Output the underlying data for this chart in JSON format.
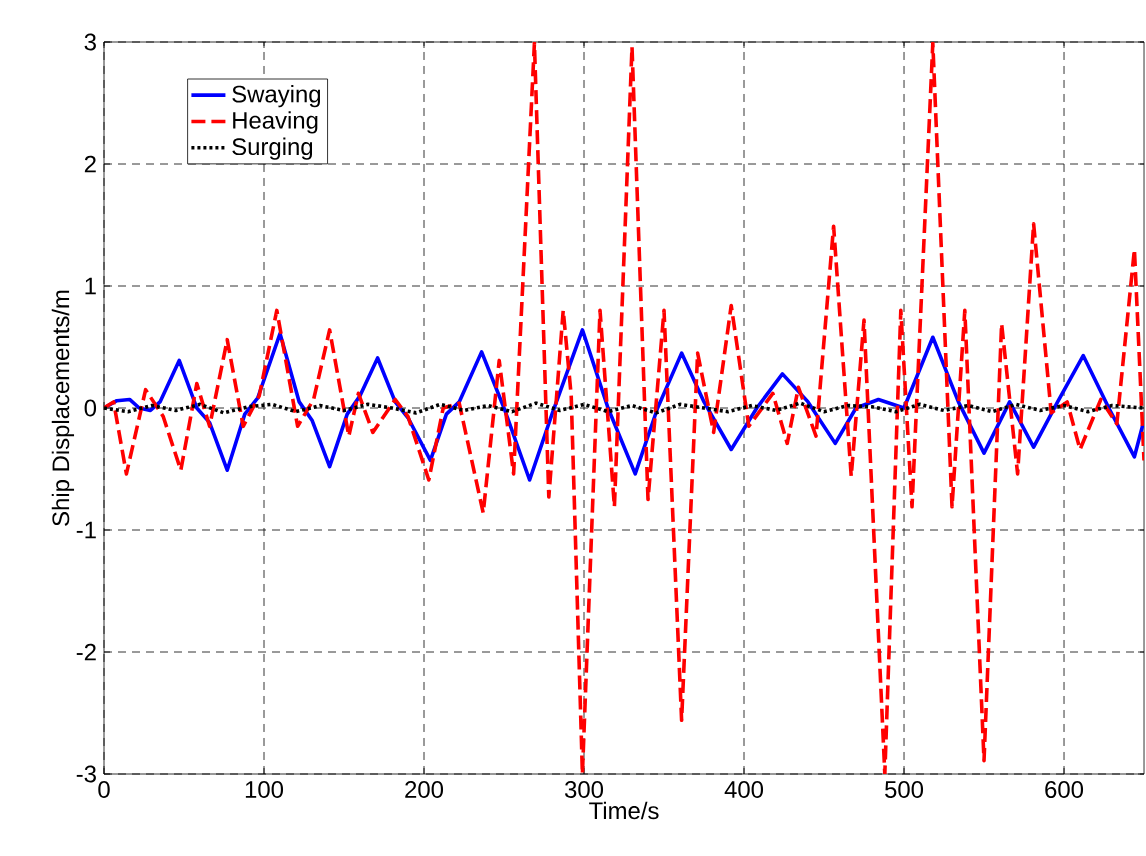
{
  "chart_data": {
    "type": "line",
    "xlabel": "Time/s",
    "ylabel": "Ship Displacements/m",
    "xlim": [
      0,
      650
    ],
    "ylim": [
      -3,
      3
    ],
    "xticks": [
      0,
      100,
      200,
      300,
      400,
      500,
      600
    ],
    "yticks": [
      -3,
      -2,
      -1,
      0,
      1,
      2,
      3
    ],
    "grid": true,
    "legend": "top left",
    "series": [
      {
        "name": "Swaying",
        "color": "#0000ff",
        "line_style": "solid",
        "x": [
          0,
          8,
          16,
          22,
          29,
          35,
          47,
          58,
          66,
          77,
          88,
          96,
          110,
          122,
          130,
          141,
          152,
          160,
          171,
          182,
          190,
          204,
          214,
          222,
          236,
          250,
          266,
          280,
          299,
          315,
          332,
          346,
          361,
          375,
          392,
          408,
          424,
          440,
          457,
          470,
          484,
          500,
          518,
          534,
          550,
          566,
          581,
          596,
          612,
          628,
          644,
          650
        ],
        "values": [
          0,
          0.06,
          0.07,
          0,
          -0.02,
          0.05,
          0.39,
          0,
          -0.12,
          -0.51,
          -0.05,
          0.08,
          0.61,
          0.05,
          -0.1,
          -0.48,
          -0.05,
          0.1,
          0.41,
          0.05,
          -0.08,
          -0.43,
          -0.05,
          0.05,
          0.46,
          0,
          -0.59,
          -0.05,
          0.64,
          0,
          -0.54,
          0,
          0.45,
          0.05,
          -0.34,
          0,
          0.28,
          0.05,
          -0.29,
          0,
          0.07,
          0,
          0.58,
          0.05,
          -0.37,
          0.05,
          -0.32,
          0.05,
          0.43,
          0,
          -0.4,
          -0.1
        ]
      },
      {
        "name": "Heaving",
        "color": "#ff0000",
        "line_style": "dashed",
        "x": [
          0,
          6,
          14,
          26,
          37,
          48,
          58,
          66,
          77,
          87,
          97,
          108,
          121,
          131,
          141,
          153,
          159,
          168,
          182,
          190,
          203,
          212,
          222,
          237,
          247,
          256,
          269,
          278,
          287,
          292,
          299,
          310,
          319,
          330,
          340,
          350,
          361,
          371,
          381,
          392,
          403,
          418,
          427,
          434,
          445,
          456,
          467,
          475,
          488,
          498,
          505,
          518,
          530,
          538,
          550,
          561,
          571,
          581,
          592,
          602,
          610,
          623,
          633,
          644,
          650
        ],
        "values": [
          0,
          0.05,
          -0.54,
          0.15,
          -0.07,
          -0.51,
          0.2,
          -0.15,
          0.56,
          -0.15,
          0.1,
          0.8,
          -0.15,
          0.07,
          0.64,
          -0.23,
          0.12,
          -0.2,
          0.07,
          -0.07,
          -0.59,
          0,
          0.04,
          -0.86,
          0.39,
          -0.54,
          2.99,
          -0.73,
          0.8,
          0.1,
          -3.0,
          0.8,
          -0.81,
          2.96,
          -0.75,
          0.8,
          -2.56,
          0.45,
          -0.2,
          0.84,
          -0.15,
          0.12,
          -0.29,
          0.17,
          -0.23,
          1.49,
          -0.56,
          0.72,
          -3.0,
          0.8,
          -0.81,
          2.99,
          -0.81,
          0.8,
          -2.89,
          0.69,
          -0.54,
          1.51,
          -0.04,
          0.05,
          -0.34,
          0.07,
          -0.13,
          1.3,
          -0.43
        ]
      },
      {
        "name": "Surging",
        "color": "#000000",
        "line_style": "dotted",
        "x": [
          0,
          15,
          30,
          45,
          60,
          75,
          90,
          105,
          120,
          135,
          150,
          165,
          180,
          195,
          210,
          225,
          240,
          255,
          270,
          285,
          300,
          315,
          330,
          345,
          360,
          375,
          390,
          405,
          420,
          435,
          450,
          465,
          480,
          495,
          510,
          525,
          540,
          555,
          570,
          585,
          600,
          615,
          630,
          650
        ],
        "values": [
          0,
          -0.03,
          0.02,
          -0.02,
          0.03,
          -0.04,
          0.01,
          0.03,
          -0.03,
          0.02,
          -0.02,
          0.03,
          0,
          -0.04,
          0.03,
          -0.02,
          0.02,
          -0.03,
          0.04,
          -0.02,
          0.03,
          -0.03,
          0.02,
          -0.04,
          0.03,
          0,
          -0.03,
          0.02,
          -0.02,
          0.04,
          -0.03,
          0.02,
          0.01,
          -0.03,
          0.03,
          -0.02,
          0.02,
          -0.03,
          0.03,
          -0.02,
          0.02,
          -0.03,
          0.02,
          0
        ]
      }
    ]
  }
}
